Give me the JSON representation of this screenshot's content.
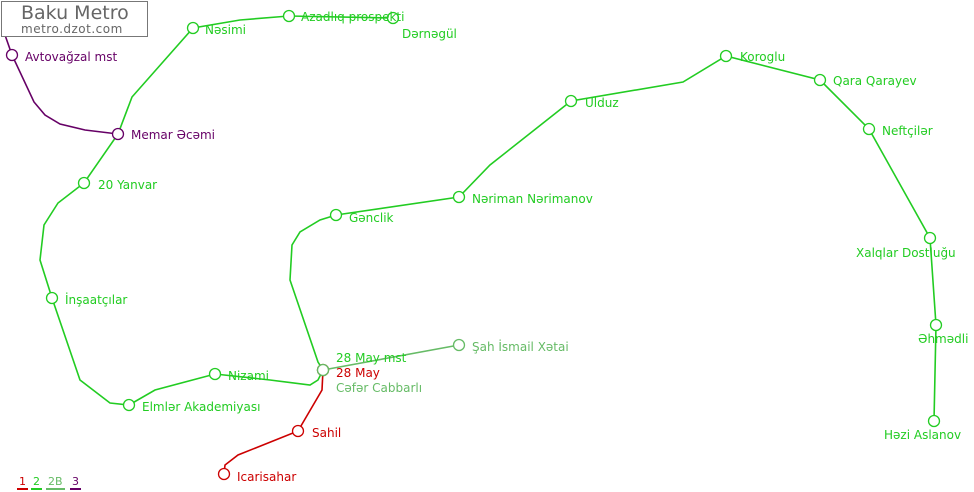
{
  "header": {
    "title": "Baku Metro",
    "subtitle": "metro.dzot.com"
  },
  "colors": {
    "line1": "#cc0000",
    "line2": "#22cc22",
    "line2B": "#66bb66",
    "line3": "#660066"
  },
  "legend": [
    {
      "label": "1",
      "color": "#cc0000"
    },
    {
      "label": "2",
      "color": "#22cc22"
    },
    {
      "label": "2B",
      "color": "#66bb66"
    },
    {
      "label": "3",
      "color": "#660066"
    }
  ],
  "stations": [
    {
      "name": "Dərnəgül",
      "line": "2"
    },
    {
      "name": "Azadlıq prospekti",
      "line": "2"
    },
    {
      "name": "Nəsimi",
      "line": "2"
    },
    {
      "name": "Memar Əcəmi",
      "line": "3"
    },
    {
      "name": "20 Yanvar",
      "line": "2"
    },
    {
      "name": "İnşaatçılar",
      "line": "2"
    },
    {
      "name": "Elmlər Akademiyası",
      "line": "2"
    },
    {
      "name": "Nizami",
      "line": "2"
    },
    {
      "name": "28 May mst",
      "line": "2"
    },
    {
      "name": "28 May",
      "line": "1"
    },
    {
      "name": "Cəfər Cabbarlı",
      "line": "2B"
    },
    {
      "name": "Şah İsmail Xətai",
      "line": "2B"
    },
    {
      "name": "Sahil",
      "line": "1"
    },
    {
      "name": "Icarisahar",
      "line": "1"
    },
    {
      "name": "Gənclik",
      "line": "2"
    },
    {
      "name": "Nəriman Nərimanov",
      "line": "2"
    },
    {
      "name": "Ulduz",
      "line": "2"
    },
    {
      "name": "Koroglu",
      "line": "2"
    },
    {
      "name": "Qara Qarayev",
      "line": "2"
    },
    {
      "name": "Neftçilər",
      "line": "2"
    },
    {
      "name": "Xalqlar Dostluğu",
      "line": "2"
    },
    {
      "name": "Əhmədli",
      "line": "2"
    },
    {
      "name": "Həzi Aslanov",
      "line": "2"
    },
    {
      "name": "Avtovağzal mst",
      "line": "3"
    }
  ]
}
